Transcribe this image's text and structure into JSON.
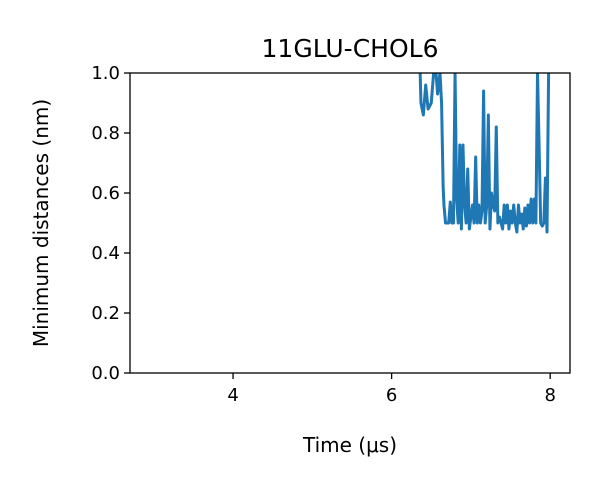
{
  "chart_data": {
    "type": "line",
    "title": "11GLU-CHOL6",
    "xlabel": "Time (μs)",
    "ylabel": "Minimum distances (nm)",
    "xlim": [
      2.7,
      8.25
    ],
    "ylim": [
      0.0,
      1.0
    ],
    "xticks": [
      4,
      6,
      8
    ],
    "yticks": [
      0.0,
      0.2,
      0.4,
      0.6,
      0.8,
      1.0
    ],
    "xtick_labels": [
      "4",
      "6",
      "8"
    ],
    "ytick_labels": [
      "0.0",
      "0.2",
      "0.4",
      "0.6",
      "0.8",
      "1.0"
    ],
    "grid": false,
    "series": [
      {
        "name": "",
        "color": "#1f77b4",
        "x": [
          6.36,
          6.37,
          6.4,
          6.43,
          6.46,
          6.5,
          6.53,
          6.56,
          6.58,
          6.61,
          6.63,
          6.65,
          6.66,
          6.68,
          6.7,
          6.72,
          6.74,
          6.76,
          6.78,
          6.8,
          6.82,
          6.84,
          6.86,
          6.88,
          6.9,
          6.92,
          6.94,
          6.96,
          6.98,
          7.0,
          7.02,
          7.04,
          7.06,
          7.08,
          7.1,
          7.12,
          7.14,
          7.16,
          7.18,
          7.2,
          7.22,
          7.24,
          7.26,
          7.28,
          7.3,
          7.32,
          7.34,
          7.36,
          7.38,
          7.4,
          7.42,
          7.44,
          7.46,
          7.48,
          7.5,
          7.52,
          7.54,
          7.56,
          7.58,
          7.6,
          7.62,
          7.64,
          7.66,
          7.68,
          7.7,
          7.72,
          7.74,
          7.76,
          7.78,
          7.8,
          7.82,
          7.84,
          7.86,
          7.88,
          7.9,
          7.92,
          7.94,
          7.96,
          7.98
        ],
        "y": [
          1.0,
          0.9,
          0.86,
          0.96,
          0.88,
          0.9,
          1.0,
          1.0,
          0.93,
          1.0,
          0.9,
          0.62,
          0.56,
          0.5,
          0.5,
          0.5,
          0.57,
          0.5,
          0.5,
          1.0,
          0.58,
          0.5,
          0.76,
          0.48,
          0.76,
          0.56,
          0.5,
          0.68,
          0.48,
          0.52,
          0.56,
          0.5,
          0.72,
          0.5,
          0.56,
          0.5,
          0.54,
          0.94,
          0.5,
          0.56,
          0.86,
          0.48,
          0.6,
          0.56,
          0.54,
          0.82,
          0.5,
          0.52,
          0.5,
          0.48,
          0.56,
          0.5,
          0.56,
          0.48,
          0.54,
          0.5,
          0.56,
          0.5,
          0.47,
          0.56,
          0.5,
          0.53,
          0.48,
          0.55,
          0.49,
          0.56,
          0.5,
          0.58,
          0.5,
          0.58,
          0.5,
          1.0,
          0.76,
          0.5,
          0.49,
          0.5,
          0.65,
          0.47,
          1.0
        ]
      }
    ]
  }
}
